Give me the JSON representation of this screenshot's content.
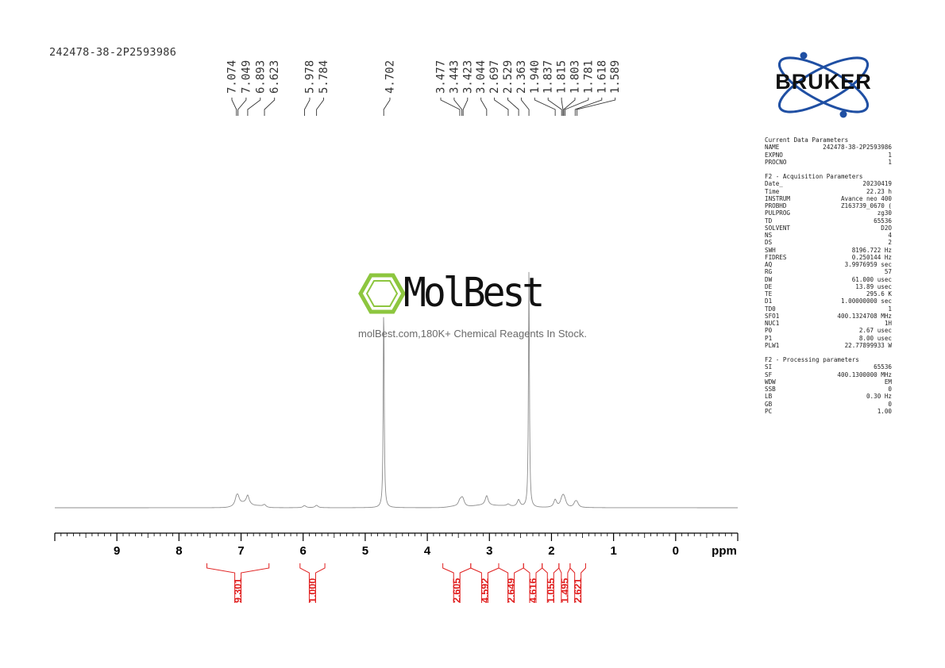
{
  "sample_name": "242478-38-2P2593986",
  "logo": {
    "name": "MolBest",
    "tagline": "molBest.com,180K+ Chemical Reagents In Stock."
  },
  "vendor_logo": "BRUKER",
  "parameters": {
    "current": {
      "title": "Current Data Parameters",
      "rows": [
        [
          "NAME",
          "242478-38-2P2593986"
        ],
        [
          "EXPNO",
          "1"
        ],
        [
          "PROCNO",
          "1"
        ]
      ]
    },
    "acquisition": {
      "title": "F2 - Acquisition Parameters",
      "rows": [
        [
          "Date_",
          "20230419"
        ],
        [
          "Time",
          "22.23 h"
        ],
        [
          "INSTRUM",
          "Avance neo 400"
        ],
        [
          "PROBHD",
          "Z163739_0670 ("
        ],
        [
          "PULPROG",
          "zg30"
        ],
        [
          "TD",
          "65536"
        ],
        [
          "SOLVENT",
          "D2O"
        ],
        [
          "NS",
          "4"
        ],
        [
          "DS",
          "2"
        ],
        [
          "SWH",
          "8196.722 Hz"
        ],
        [
          "FIDRES",
          "0.250144 Hz"
        ],
        [
          "AQ",
          "3.9976959 sec"
        ],
        [
          "RG",
          "57"
        ],
        [
          "DW",
          "61.000 usec"
        ],
        [
          "DE",
          "13.89 usec"
        ],
        [
          "TE",
          "295.6 K"
        ],
        [
          "D1",
          "1.00000000 sec"
        ],
        [
          "TD0",
          "1"
        ],
        [
          "SFO1",
          "400.1324708 MHz"
        ],
        [
          "NUC1",
          "1H"
        ],
        [
          "P0",
          "2.67 usec"
        ],
        [
          "P1",
          "8.00 usec"
        ],
        [
          "PLW1",
          "22.77899933 W"
        ]
      ]
    },
    "processing": {
      "title": "F2 - Processing parameters",
      "rows": [
        [
          "SI",
          "65536"
        ],
        [
          "SF",
          "400.1300000 MHz"
        ],
        [
          "WDW",
          "EM"
        ],
        [
          "SSB",
          "0"
        ],
        [
          "LB",
          "0.30 Hz"
        ],
        [
          "GB",
          "0"
        ],
        [
          "PC",
          "1.00"
        ]
      ]
    }
  },
  "colors": {
    "spectrum": "#8c8c8c",
    "integral": "#e02020",
    "axis": "#000000",
    "logo_green": "#8dc63f",
    "bruker_blue": "#1f4fa3"
  },
  "chart_data": {
    "type": "line",
    "title": "",
    "xlabel": "ppm",
    "x_reversed": true,
    "xlim": [
      10.0,
      -1.0
    ],
    "x_ticks": [
      9,
      8,
      7,
      6,
      5,
      4,
      3,
      2,
      1,
      0
    ],
    "peak_labels": [
      "7.074",
      "7.049",
      "6.893",
      "6.623",
      "5.978",
      "5.784",
      "4.702",
      "3.477",
      "3.443",
      "3.423",
      "3.044",
      "2.697",
      "2.529",
      "2.363",
      "1.940",
      "1.837",
      "1.815",
      "1.803",
      "1.781",
      "1.618",
      "1.589"
    ],
    "peaks": [
      {
        "ppm": 7.074,
        "height": 0.028
      },
      {
        "ppm": 7.049,
        "height": 0.027
      },
      {
        "ppm": 6.893,
        "height": 0.036
      },
      {
        "ppm": 6.623,
        "height": 0.01
      },
      {
        "ppm": 5.978,
        "height": 0.009
      },
      {
        "ppm": 5.784,
        "height": 0.01
      },
      {
        "ppm": 4.702,
        "height": 0.87
      },
      {
        "ppm": 3.477,
        "height": 0.02
      },
      {
        "ppm": 3.443,
        "height": 0.022
      },
      {
        "ppm": 3.423,
        "height": 0.018
      },
      {
        "ppm": 3.044,
        "height": 0.04
      },
      {
        "ppm": 2.697,
        "height": 0.008
      },
      {
        "ppm": 2.529,
        "height": 0.03
      },
      {
        "ppm": 2.363,
        "height": 1.0
      },
      {
        "ppm": 1.94,
        "height": 0.032
      },
      {
        "ppm": 1.837,
        "height": 0.02
      },
      {
        "ppm": 1.815,
        "height": 0.02
      },
      {
        "ppm": 1.803,
        "height": 0.018
      },
      {
        "ppm": 1.781,
        "height": 0.016
      },
      {
        "ppm": 1.618,
        "height": 0.018
      },
      {
        "ppm": 1.589,
        "height": 0.018
      }
    ],
    "integrals": [
      {
        "from": 7.55,
        "to": 6.55,
        "value": "9.301"
      },
      {
        "from": 6.05,
        "to": 5.65,
        "value": "1.000"
      },
      {
        "from": 3.75,
        "to": 3.3,
        "value": "2.605"
      },
      {
        "from": 3.3,
        "to": 2.85,
        "value": "4.592"
      },
      {
        "from": 2.85,
        "to": 2.45,
        "value": "2.649"
      },
      {
        "from": 2.45,
        "to": 2.15,
        "value": "4.616"
      },
      {
        "from": 2.15,
        "to": 1.88,
        "value": "1.055"
      },
      {
        "from": 1.88,
        "to": 1.7,
        "value": "1.495"
      },
      {
        "from": 1.7,
        "to": 1.45,
        "value": "2.621"
      }
    ]
  }
}
